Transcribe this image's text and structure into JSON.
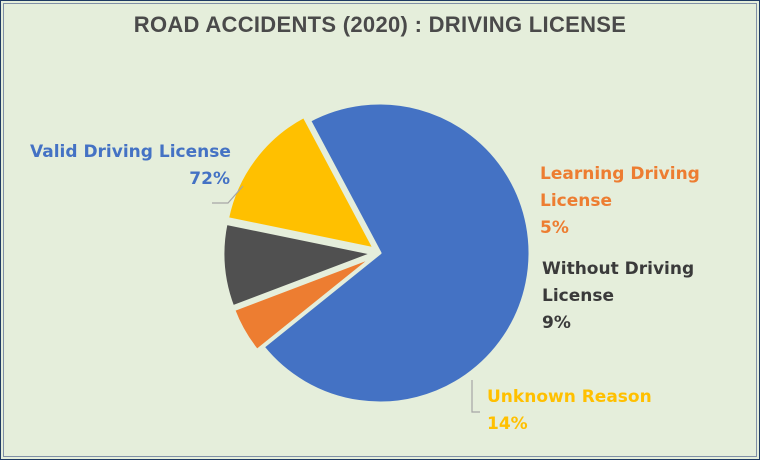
{
  "chart_data": {
    "type": "pie",
    "title": "ROAD ACCIDENTS (2020) : DRIVING LICENSE",
    "slices": [
      {
        "name": "Valid Driving License",
        "value": 72,
        "label": "72%",
        "color": "#4472c4",
        "exploded": false
      },
      {
        "name": "Learning Driving License",
        "value": 5,
        "label": "5%",
        "color": "#ed7d31",
        "exploded": true
      },
      {
        "name": "Without Driving License",
        "value": 9,
        "label": "9%",
        "color": "#505050",
        "exploded": true
      },
      {
        "name": "Unknown Reason",
        "value": 14,
        "label": "14%",
        "color": "#ffc000",
        "exploded": true
      }
    ],
    "legend": "none"
  },
  "colors": {
    "background": "#e5eedb",
    "title": "#4a4a4a",
    "leader_line": "#a6a6a6",
    "slice_border": "#e5eedb"
  }
}
